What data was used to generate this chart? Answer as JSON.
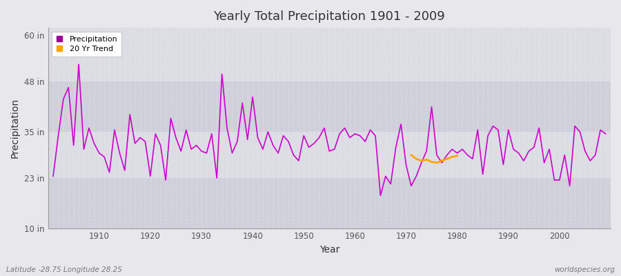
{
  "title": "Yearly Total Precipitation 1901 - 2009",
  "xlabel": "Year",
  "ylabel": "Precipitation",
  "subtitle_left": "Latitude -28.75 Longitude 28.25",
  "subtitle_right": "worldspecies.org",
  "legend_entries": [
    "Precipitation",
    "20 Yr Trend"
  ],
  "legend_colors": [
    "#990099",
    "#FFA500"
  ],
  "bg_color": "#e8e8ec",
  "plot_bg_color_light": "#dcdce4",
  "plot_bg_color_dark": "#d0d0da",
  "line_color": "#cc00cc",
  "trend_color": "#FFA500",
  "grid_color": "#ffffff",
  "ylim": [
    10,
    62
  ],
  "yticks": [
    10,
    23,
    35,
    48,
    60
  ],
  "ytick_labels": [
    "10 in",
    "23 in",
    "35 in",
    "48 in",
    "60 in"
  ],
  "xlim": [
    1900,
    2010
  ],
  "xticks": [
    1910,
    1920,
    1930,
    1940,
    1950,
    1960,
    1970,
    1980,
    1990,
    2000
  ],
  "years": [
    1901,
    1902,
    1903,
    1904,
    1905,
    1906,
    1907,
    1908,
    1909,
    1910,
    1911,
    1912,
    1913,
    1914,
    1915,
    1916,
    1917,
    1918,
    1919,
    1920,
    1921,
    1922,
    1923,
    1924,
    1925,
    1926,
    1927,
    1928,
    1929,
    1930,
    1931,
    1932,
    1933,
    1934,
    1935,
    1936,
    1937,
    1938,
    1939,
    1940,
    1941,
    1942,
    1943,
    1944,
    1945,
    1946,
    1947,
    1948,
    1949,
    1950,
    1951,
    1952,
    1953,
    1954,
    1955,
    1956,
    1957,
    1958,
    1959,
    1960,
    1961,
    1962,
    1963,
    1964,
    1965,
    1966,
    1967,
    1968,
    1969,
    1970,
    1971,
    1972,
    1973,
    1974,
    1975,
    1976,
    1977,
    1978,
    1979,
    1980,
    1981,
    1982,
    1983,
    1984,
    1985,
    1986,
    1987,
    1988,
    1989,
    1990,
    1991,
    1992,
    1993,
    1994,
    1995,
    1996,
    1997,
    1998,
    1999,
    2000,
    2001,
    2002,
    2003,
    2004,
    2005,
    2006,
    2007,
    2008,
    2009
  ],
  "precip": [
    23.5,
    34.0,
    43.5,
    46.5,
    31.5,
    52.5,
    30.5,
    36.0,
    32.0,
    29.5,
    28.5,
    24.5,
    35.5,
    29.5,
    25.0,
    39.5,
    32.0,
    33.5,
    32.5,
    23.5,
    34.5,
    31.5,
    22.5,
    38.5,
    33.5,
    30.0,
    35.5,
    30.5,
    31.5,
    30.0,
    29.5,
    34.5,
    23.0,
    50.0,
    36.0,
    29.5,
    32.5,
    42.5,
    33.0,
    44.0,
    33.5,
    30.5,
    35.0,
    31.5,
    29.5,
    34.0,
    32.5,
    29.0,
    27.5,
    34.0,
    31.0,
    32.0,
    33.5,
    36.0,
    30.0,
    30.5,
    34.5,
    36.0,
    33.5,
    34.5,
    34.0,
    32.5,
    35.5,
    34.0,
    18.5,
    23.5,
    21.5,
    31.0,
    37.0,
    26.5,
    21.0,
    23.5,
    27.0,
    30.0,
    41.5,
    29.0,
    27.0,
    29.0,
    30.5,
    29.5,
    30.5,
    29.0,
    28.0,
    35.5,
    24.0,
    34.0,
    36.5,
    35.5,
    26.5,
    35.5,
    30.5,
    29.5,
    27.5,
    30.0,
    31.0,
    36.0,
    27.0,
    30.5,
    22.5,
    22.5,
    29.0,
    21.0,
    36.5,
    35.0,
    30.0,
    27.5,
    29.0,
    35.5,
    34.5
  ],
  "trend_years": [
    1971,
    1972,
    1973,
    1974,
    1975,
    1976,
    1977,
    1978,
    1979,
    1980
  ],
  "trend_values": [
    29.0,
    28.0,
    27.5,
    27.8,
    27.2,
    27.0,
    27.5,
    28.0,
    28.5,
    28.8
  ]
}
